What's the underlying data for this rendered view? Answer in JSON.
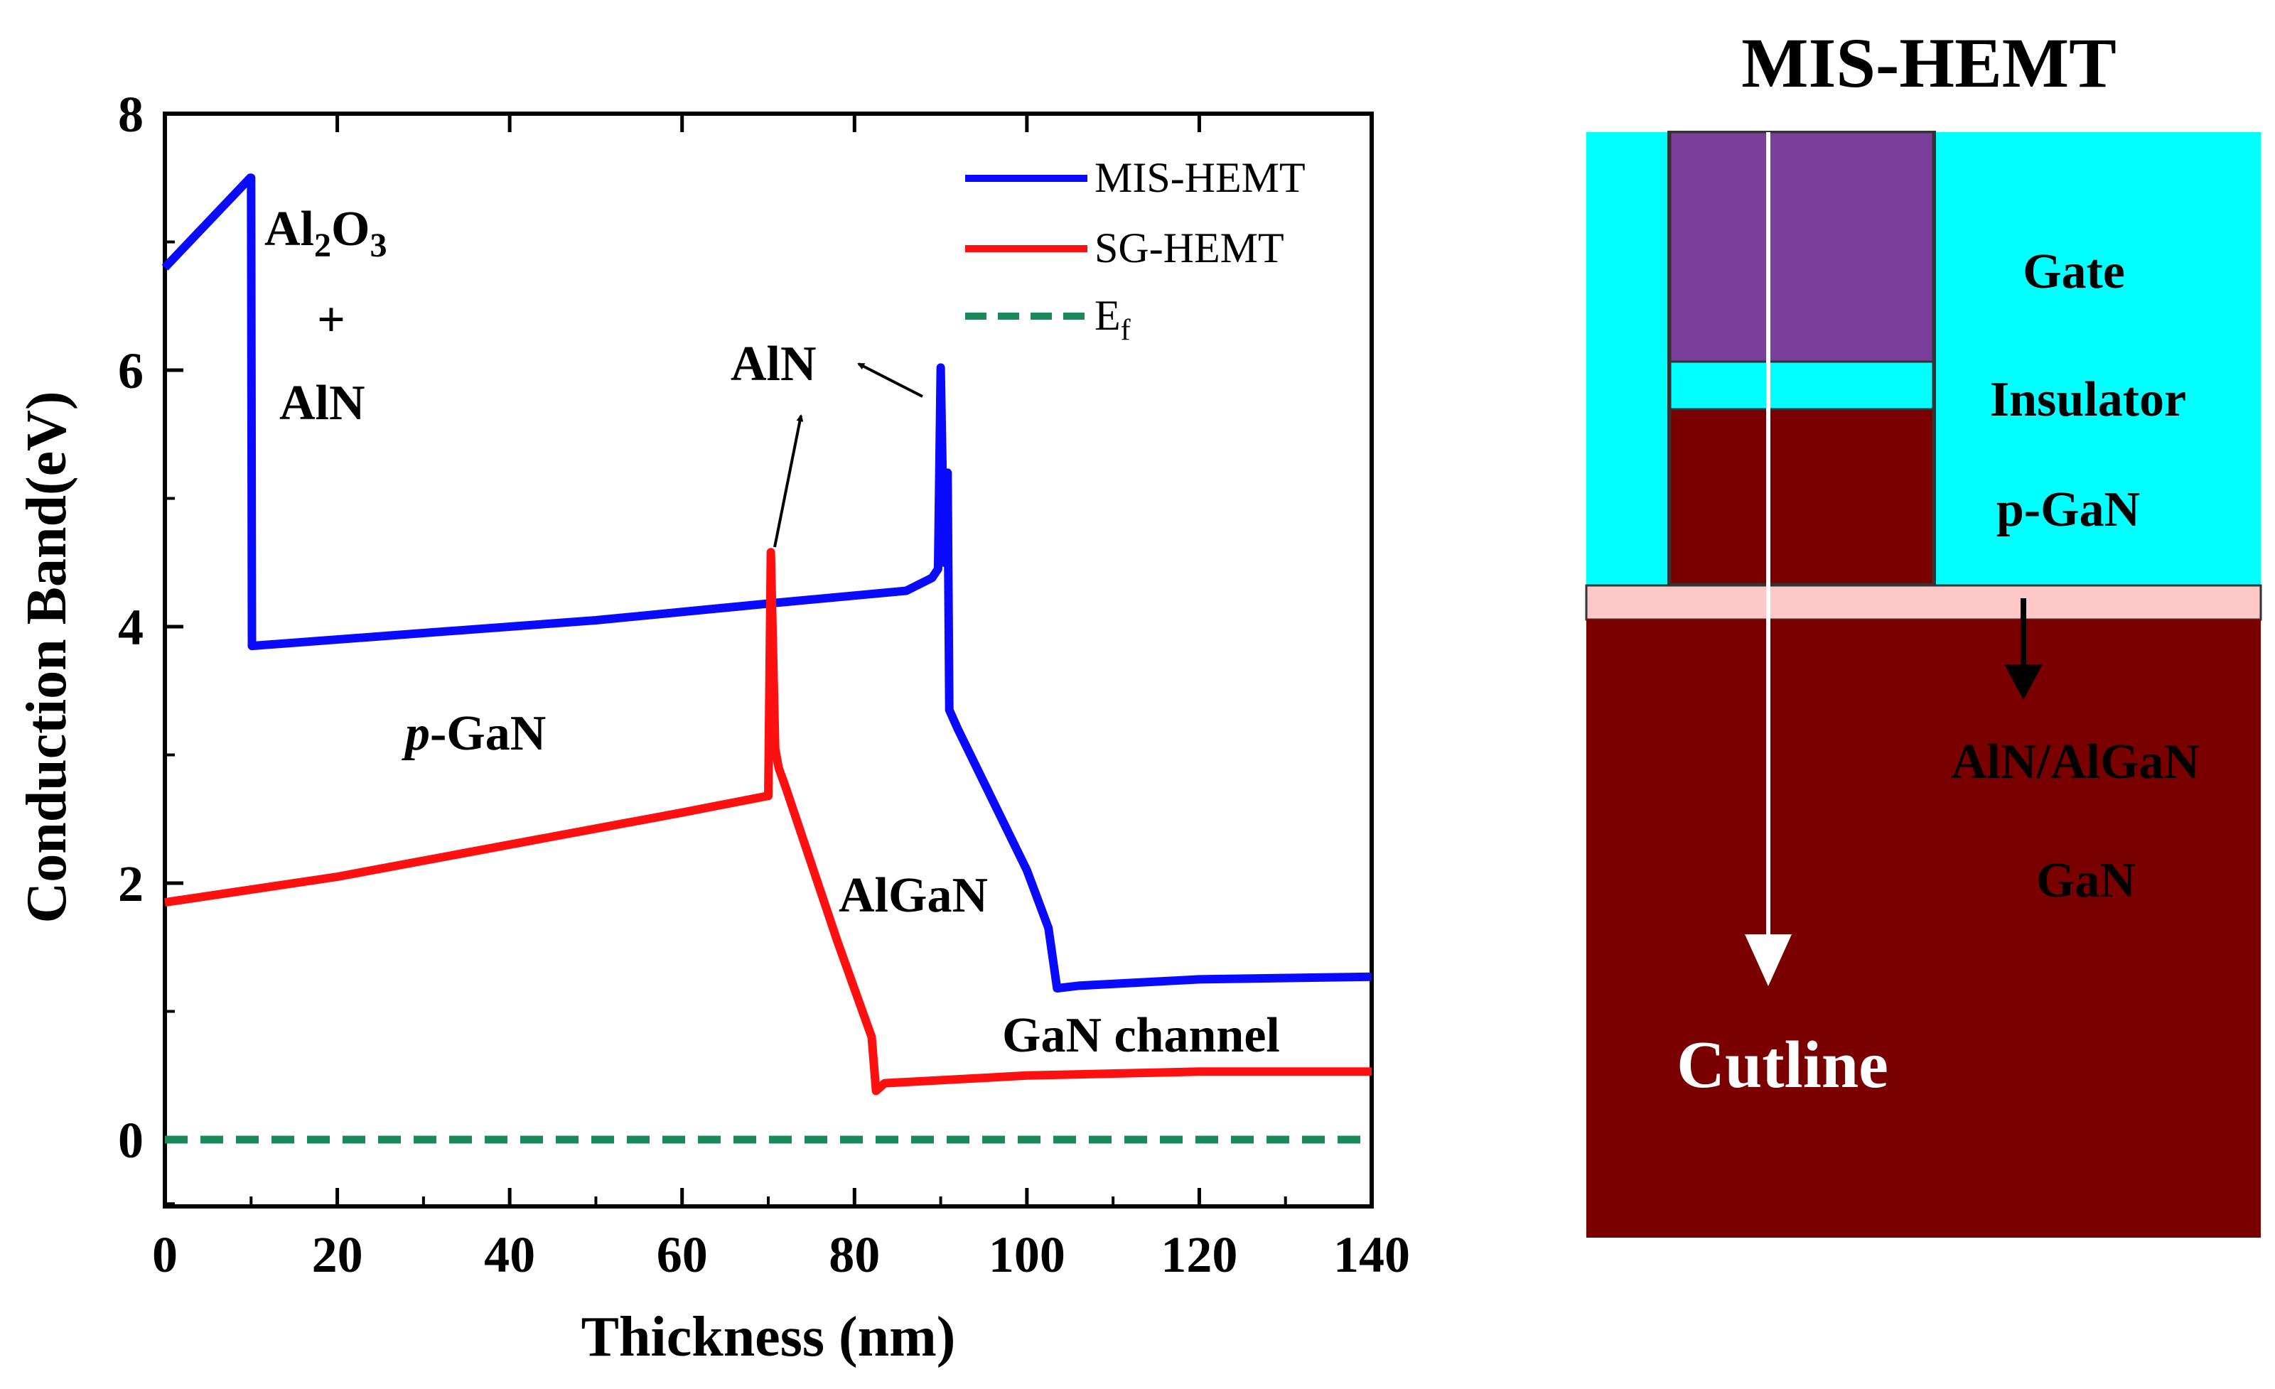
{
  "chart_data": {
    "type": "line",
    "xlabel": "Thickness (nm)",
    "ylabel": "Conduction Band(eV)",
    "xlim": [
      0,
      140
    ],
    "ylim": [
      -0.5,
      8
    ],
    "xticks": [
      0,
      20,
      40,
      60,
      80,
      100,
      120,
      140
    ],
    "yticks": [
      0,
      2,
      4,
      6,
      8
    ],
    "xtick_labels": [
      "0",
      "20",
      "40",
      "60",
      "80",
      "100",
      "120",
      "140"
    ],
    "ytick_labels": [
      "0",
      "2",
      "4",
      "6",
      "8"
    ],
    "legend_position": "top-right",
    "series": [
      {
        "name": "MIS-HEMT",
        "color": "#0a0aff",
        "style": "solid",
        "x": [
          0,
          9.9,
          10,
          10.1,
          30,
          50,
          70,
          86,
          89,
          89.7,
          90,
          90.4,
          90.8,
          91,
          92,
          100,
          102.5,
          103.5,
          106,
          120,
          140
        ],
        "y": [
          6.8,
          7.5,
          7.5,
          3.85,
          3.95,
          4.05,
          4.18,
          4.28,
          4.38,
          4.45,
          6.02,
          4.5,
          5.2,
          3.35,
          3.2,
          2.1,
          1.65,
          1.18,
          1.2,
          1.25,
          1.27
        ]
      },
      {
        "name": "SG-HEMT",
        "color": "#ff1010",
        "style": "solid",
        "x": [
          0,
          20,
          40,
          60,
          69.9,
          70,
          70.3,
          70.8,
          71.2,
          72,
          78,
          82,
          82.5,
          83.5,
          100,
          120,
          140
        ],
        "y": [
          1.85,
          2.05,
          2.3,
          2.55,
          2.68,
          2.68,
          4.58,
          3.05,
          2.9,
          2.75,
          1.55,
          0.8,
          0.38,
          0.44,
          0.5,
          0.53,
          0.53
        ]
      },
      {
        "name": "E_f",
        "legend_text": "E",
        "legend_subscript": "f",
        "color": "#1a8a5a",
        "style": "dashed",
        "x": [
          0,
          140
        ],
        "y": [
          0,
          0
        ]
      }
    ],
    "annotations": {
      "al2o3_a": "Al",
      "al2o3_sub1": "2",
      "al2o3_b": "O",
      "al2o3_sub2": "3",
      "plus": "+",
      "aln_left": "AlN",
      "aln_mid": "AlN",
      "p_italic": "p",
      "pgan_rest": "-GaN",
      "algan": "AlGaN",
      "gan_channel": "GaN channel"
    }
  },
  "structure": {
    "title": "MIS-HEMT",
    "labels": {
      "gate": "Gate",
      "insulator": "Insulator",
      "pgan": "p-GaN",
      "aln_algan": "AlN/AlGaN",
      "gan": "GaN",
      "cutline": "Cutline"
    },
    "colors": {
      "insulator": "#00ffff",
      "gate_metal": "#7a3f9a",
      "gan": "#7a0000",
      "barrier": "#ffc8c8",
      "cutline": "#ffffff"
    }
  }
}
